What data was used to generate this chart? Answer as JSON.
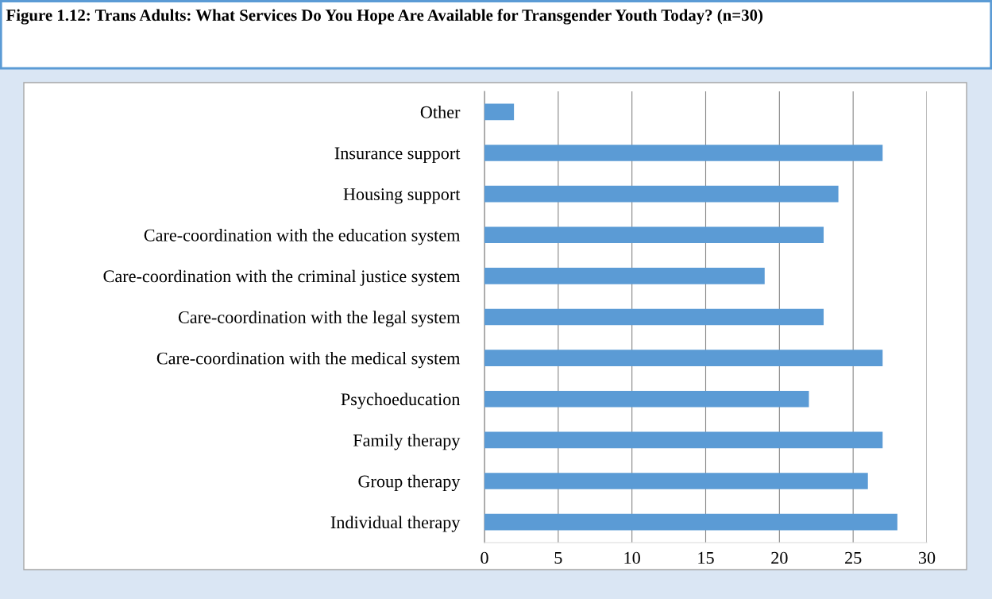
{
  "chart_data": {
    "type": "bar",
    "orientation": "horizontal",
    "title": "Figure 1.12: Trans Adults: What Services Do You Hope Are Available for Transgender Youth Today? (n=30)",
    "categories": [
      "Other",
      "Insurance support",
      "Housing support",
      "Care-coordination with the education system",
      "Care-coordination with the criminal justice system",
      "Care-coordination with the legal system",
      "Care-coordination with the medical system",
      "Psychoeducation",
      "Family therapy",
      "Group therapy",
      "Individual therapy"
    ],
    "values": [
      2,
      27,
      24,
      23,
      19,
      23,
      27,
      22,
      27,
      26,
      28
    ],
    "color": "#5b9bd5",
    "xlim": [
      0,
      30
    ],
    "xticks": [
      0,
      5,
      10,
      15,
      20,
      25,
      30
    ],
    "grid": "x",
    "legend": false
  }
}
